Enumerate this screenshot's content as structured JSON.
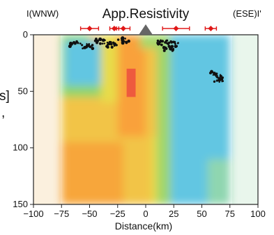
{
  "chart_data": {
    "type": "heatmap",
    "title": "App.Resistivity",
    "left_label": "I(WNW)",
    "right_label": "(ESE)I'",
    "xlabel": "Distance(km)",
    "ylabel": "",
    "xlim": [
      -100,
      100
    ],
    "ylim": [
      150,
      0
    ],
    "x_ticks": [
      -100,
      -75,
      -50,
      -25,
      0,
      25,
      50,
      75,
      100
    ],
    "x_tick_labels": [
      "−100",
      "−75",
      "−50",
      "−25",
      "0",
      "25",
      "50",
      "75",
      "100"
    ],
    "y_ticks": [
      0,
      50,
      100,
      150
    ],
    "y_tick_labels": [
      "0",
      "50",
      "100",
      "150"
    ],
    "data_x_range": [
      -75,
      75
    ],
    "zones": [
      {
        "x0": -75,
        "x1": -50,
        "d0": 0,
        "d1": 18,
        "color": "#8fd56a"
      },
      {
        "x0": -75,
        "x1": -55,
        "d0": 18,
        "d1": 55,
        "color": "#8fd56a"
      },
      {
        "x0": -72,
        "x1": -38,
        "d0": 5,
        "d1": 45,
        "color": "#62c6e2"
      },
      {
        "x0": -55,
        "x1": -40,
        "d0": 45,
        "d1": 60,
        "color": "#8fd56a"
      },
      {
        "x0": -40,
        "x1": -25,
        "d0": 0,
        "d1": 60,
        "color": "#e8db4a"
      },
      {
        "x0": -75,
        "x1": -40,
        "d0": 55,
        "d1": 95,
        "color": "#f2c446"
      },
      {
        "x0": -75,
        "x1": -20,
        "d0": 95,
        "d1": 150,
        "color": "#f7a63a"
      },
      {
        "x0": -25,
        "x1": 0,
        "d0": 0,
        "d1": 90,
        "color": "#f9a13a"
      },
      {
        "x0": -40,
        "x1": -25,
        "d0": 60,
        "d1": 95,
        "color": "#f2c446"
      },
      {
        "x0": -20,
        "x1": 5,
        "d0": 90,
        "d1": 150,
        "color": "#f2c446"
      },
      {
        "x0": 0,
        "x1": 10,
        "d0": 0,
        "d1": 90,
        "color": "#f2c446"
      },
      {
        "x0": 5,
        "x1": 15,
        "d0": 90,
        "d1": 150,
        "color": "#e8db4a"
      },
      {
        "x0": 10,
        "x1": 22,
        "d0": 0,
        "d1": 150,
        "color": "#9fd66a"
      },
      {
        "x0": 22,
        "x1": 75,
        "d0": 0,
        "d1": 150,
        "color": "#62c6e2"
      },
      {
        "x0": 55,
        "x1": 75,
        "d0": 110,
        "d1": 150,
        "color": "#8fd6b0"
      },
      {
        "x0": -5,
        "x1": 10,
        "d0": 0,
        "d1": 12,
        "color": "#a6d86a"
      },
      {
        "x0": -17,
        "x1": -9,
        "d0": 30,
        "d1": 55,
        "color": "#ee5a3e"
      }
    ],
    "seismicity_clusters": [
      {
        "x": -63,
        "depth": 8
      },
      {
        "x": -52,
        "depth": 10
      },
      {
        "x": -40,
        "depth": 6
      },
      {
        "x": -30,
        "depth": 9
      },
      {
        "x": -20,
        "depth": 5
      },
      {
        "x": 15,
        "depth": 7
      },
      {
        "x": 20,
        "depth": 12
      },
      {
        "x": 25,
        "depth": 8
      },
      {
        "x": 62,
        "depth": 35
      },
      {
        "x": 66,
        "depth": 40
      }
    ],
    "stations_top": [
      {
        "x": -50,
        "err": 8
      },
      {
        "x": -28,
        "err": 4
      },
      {
        "x": -20,
        "err": 6
      },
      {
        "x": 27,
        "err": 12
      },
      {
        "x": 58,
        "err": 5
      }
    ],
    "volcano_x": 0,
    "edge_fragments": [
      "s]",
      ","
    ]
  }
}
